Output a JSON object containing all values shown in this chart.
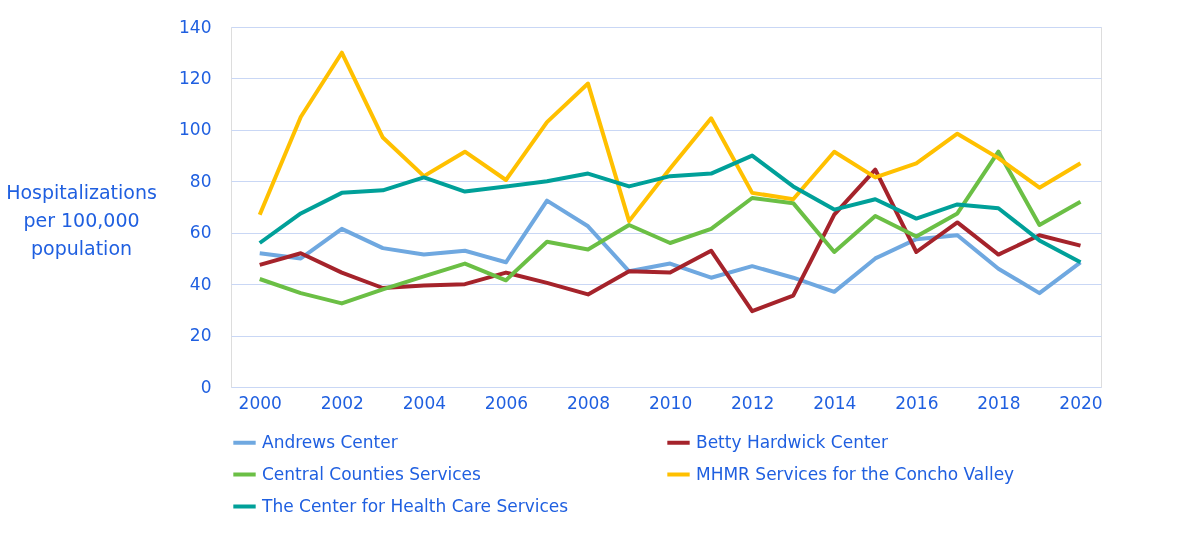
{
  "chart_data": {
    "type": "line",
    "ylabel": "Hospitalizations\nper 100,000\npopulation",
    "x": [
      2000,
      2001,
      2002,
      2003,
      2004,
      2005,
      2006,
      2007,
      2008,
      2009,
      2010,
      2011,
      2012,
      2013,
      2014,
      2015,
      2016,
      2017,
      2018,
      2019,
      2020
    ],
    "xlim": [
      1999.3,
      2020.5
    ],
    "xticks": [
      2000,
      2002,
      2004,
      2006,
      2008,
      2010,
      2012,
      2014,
      2016,
      2018,
      2020
    ],
    "ylim": [
      0,
      140
    ],
    "yticks": [
      0,
      20,
      40,
      60,
      80,
      100,
      120,
      140
    ],
    "grid": "y",
    "legend": "bottom",
    "marker": "none",
    "line_style": "solid",
    "series": [
      {
        "name": "Andrews Center",
        "color": "#6fa8e0",
        "values": [
          52,
          50,
          61.5,
          54,
          51.5,
          53,
          48.5,
          72.5,
          62.5,
          45,
          48,
          42.5,
          47,
          42.5,
          37,
          50,
          57.5,
          59,
          46,
          36.5,
          48.5
        ]
      },
      {
        "name": "Betty Hardwick Center",
        "color": "#a5232b",
        "values": [
          47.5,
          52,
          44.5,
          38.5,
          39.5,
          40,
          44.5,
          40.5,
          36,
          45,
          44.5,
          53,
          29.5,
          35.5,
          67,
          84.5,
          52.5,
          64,
          51.5,
          59,
          55
        ]
      },
      {
        "name": "Central Counties Services",
        "color": "#6bbf45",
        "values": [
          42,
          36.5,
          32.5,
          38,
          43,
          48,
          41.5,
          56.5,
          53.5,
          63,
          56,
          61.5,
          73.5,
          71.5,
          52.5,
          66.5,
          58.5,
          67.5,
          91.5,
          63,
          72
        ]
      },
      {
        "name": "MHMR Services for the Concho Valley",
        "color": "#ffc000",
        "values": [
          67,
          105,
          130,
          97,
          82,
          91.5,
          80.5,
          103,
          118,
          64.5,
          85,
          104.5,
          75.5,
          73,
          91.5,
          81.5,
          87,
          98.5,
          89,
          77.5,
          87
        ]
      },
      {
        "name": "The Center for Health Care Services",
        "color": "#00a099",
        "values": [
          56,
          67.5,
          75.5,
          76.5,
          81.5,
          76,
          78,
          80,
          83,
          78,
          82,
          83,
          90,
          78,
          69,
          73,
          65.5,
          71,
          69.5,
          57,
          48.5
        ]
      }
    ]
  }
}
